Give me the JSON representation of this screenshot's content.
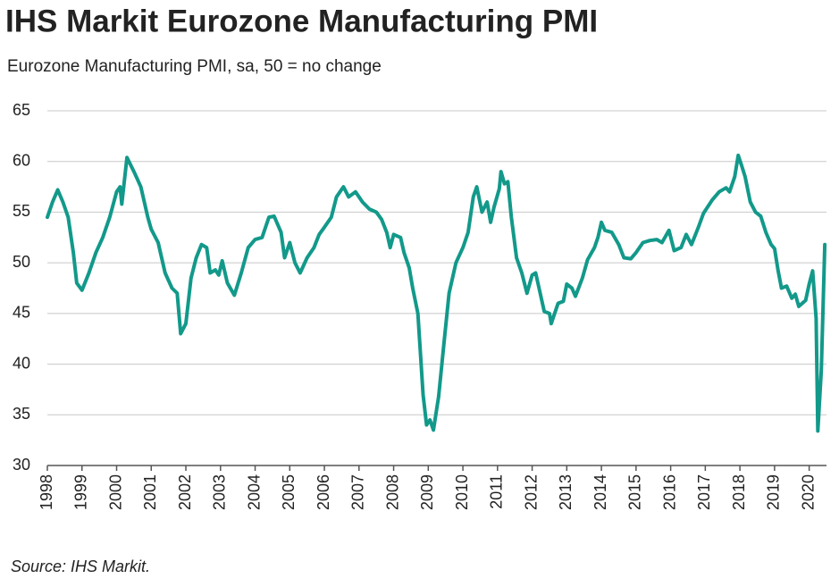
{
  "chart_data": {
    "type": "line",
    "title": "IHS Markit Eurozone Manufacturing PMI",
    "subtitle": "Eurozone Manufacturing PMI, sa, 50 = no change",
    "source": "Source: IHS Markit.",
    "color": "#12998a",
    "x": [
      1998.0,
      1998.15,
      1998.3,
      1998.45,
      1998.6,
      1998.75,
      1998.85,
      1999.0,
      1999.2,
      1999.4,
      1999.6,
      1999.8,
      2000.0,
      2000.1,
      2000.15,
      2000.3,
      2000.5,
      2000.7,
      2000.9,
      2001.0,
      2001.2,
      2001.4,
      2001.6,
      2001.75,
      2001.85,
      2002.0,
      2002.15,
      2002.3,
      2002.45,
      2002.6,
      2002.7,
      2002.85,
      2002.95,
      2003.05,
      2003.2,
      2003.4,
      2003.6,
      2003.8,
      2004.0,
      2004.2,
      2004.4,
      2004.55,
      2004.75,
      2004.85,
      2005.0,
      2005.15,
      2005.3,
      2005.5,
      2005.7,
      2005.85,
      2006.0,
      2006.2,
      2006.35,
      2006.55,
      2006.7,
      2006.9,
      2007.1,
      2007.3,
      2007.5,
      2007.65,
      2007.8,
      2007.9,
      2008.0,
      2008.2,
      2008.3,
      2008.45,
      2008.55,
      2008.7,
      2008.85,
      2008.95,
      2009.05,
      2009.15,
      2009.3,
      2009.45,
      2009.6,
      2009.8,
      2010.0,
      2010.15,
      2010.3,
      2010.4,
      2010.55,
      2010.7,
      2010.8,
      2010.9,
      2011.05,
      2011.1,
      2011.2,
      2011.3,
      2011.4,
      2011.55,
      2011.7,
      2011.85,
      2012.0,
      2012.1,
      2012.2,
      2012.35,
      2012.5,
      2012.55,
      2012.75,
      2012.9,
      2013.0,
      2013.15,
      2013.25,
      2013.45,
      2013.6,
      2013.8,
      2013.9,
      2014.0,
      2014.1,
      2014.3,
      2014.5,
      2014.65,
      2014.85,
      2015.0,
      2015.2,
      2015.4,
      2015.6,
      2015.75,
      2015.95,
      2016.1,
      2016.3,
      2016.45,
      2016.6,
      2016.8,
      2016.95,
      2017.2,
      2017.4,
      2017.6,
      2017.7,
      2017.85,
      2017.95,
      2018.05,
      2018.15,
      2018.3,
      2018.45,
      2018.6,
      2018.75,
      2018.9,
      2019.0,
      2019.1,
      2019.2,
      2019.35,
      2019.5,
      2019.6,
      2019.7,
      2019.9,
      2020.0,
      2020.1,
      2020.2,
      2020.25,
      2020.35,
      2020.45
    ],
    "values": [
      54.5,
      56,
      57.2,
      56,
      54.5,
      51,
      48,
      47.3,
      49,
      51,
      52.5,
      54.5,
      57,
      57.5,
      55.8,
      60.4,
      59,
      57.5,
      54.5,
      53.3,
      52,
      49,
      47.5,
      47,
      43,
      44,
      48.5,
      50.5,
      51.8,
      51.5,
      49,
      49.3,
      48.8,
      50.2,
      48,
      46.8,
      49,
      51.5,
      52.3,
      52.5,
      54.5,
      54.6,
      53,
      50.5,
      52,
      50,
      49,
      50.5,
      51.5,
      52.8,
      53.5,
      54.5,
      56.5,
      57.5,
      56.5,
      57,
      56,
      55.3,
      55,
      54.3,
      53,
      51.5,
      52.8,
      52.5,
      51,
      49.5,
      47.5,
      45,
      37,
      34,
      34.5,
      33.5,
      36.8,
      42,
      47,
      50,
      51.5,
      53,
      56.5,
      57.5,
      55,
      56,
      54,
      55.5,
      57.3,
      59,
      57.8,
      58,
      54.5,
      50.5,
      49,
      47,
      48.8,
      49,
      47.5,
      45.2,
      45,
      44,
      46,
      46.2,
      47.9,
      47.5,
      46.7,
      48.5,
      50.3,
      51.5,
      52.5,
      54,
      53.2,
      53,
      51.8,
      50.5,
      50.4,
      51,
      52,
      52.2,
      52.3,
      52,
      53.2,
      51.2,
      51.5,
      52.8,
      51.8,
      53.5,
      54.9,
      56.2,
      57,
      57.4,
      57,
      58.5,
      60.6,
      59.6,
      58.5,
      56,
      55,
      54.6,
      53,
      51.8,
      51.4,
      49.3,
      47.5,
      47.7,
      46.5,
      46.9,
      45.7,
      46.3,
      47.9,
      49.2,
      44.5,
      33.4,
      39.4,
      51.8
    ],
    "xlim": [
      1998,
      2020.5
    ],
    "xticks": [
      1998,
      1999,
      2000,
      2001,
      2002,
      2003,
      2004,
      2005,
      2006,
      2007,
      2008,
      2009,
      2010,
      2011,
      2012,
      2013,
      2014,
      2015,
      2016,
      2017,
      2018,
      2019,
      2020
    ],
    "ylim": [
      30,
      65
    ],
    "yticks": [
      30,
      35,
      40,
      45,
      50,
      55,
      60,
      65
    ],
    "grid": true
  }
}
